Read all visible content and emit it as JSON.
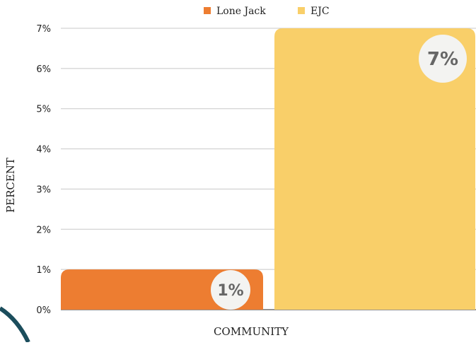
{
  "chart_data": {
    "type": "bar",
    "categories": [
      "Lone Jack",
      "EJC"
    ],
    "values": [
      1,
      7
    ],
    "value_labels": [
      "1%",
      "7%"
    ],
    "colors": [
      "#ED7D31",
      "#F9CF69"
    ],
    "xlabel": "COMMUNITY",
    "ylabel": "PERCENT",
    "ylim": [
      0,
      7
    ],
    "yticks": [
      "0%",
      "1%",
      "2%",
      "3%",
      "4%",
      "5%",
      "6%",
      "7%"
    ],
    "grid": true,
    "legend_position": "top",
    "legend": [
      {
        "label": "Lone Jack",
        "color": "#ED7D31"
      },
      {
        "label": "EJC",
        "color": "#F9CF69"
      }
    ]
  }
}
